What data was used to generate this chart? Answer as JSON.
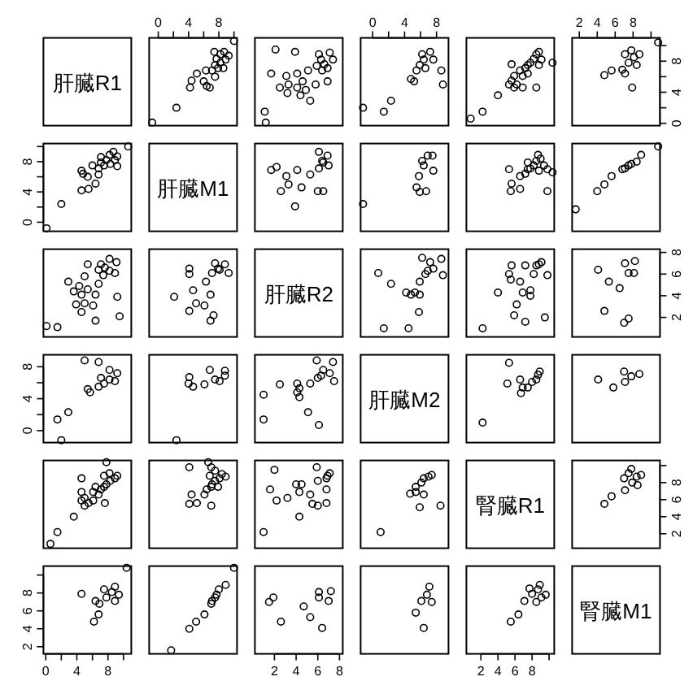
{
  "chart_data": [
    {
      "type": "other",
      "title": "肝臓R1"
    },
    {
      "type": "scatter",
      "color": "#000000",
      "marker": "circle",
      "xlim": [
        -1.2,
        10.4
      ],
      "ylim": [
        -0.3,
        11
      ],
      "tick_labels": "x",
      "xticks": [
        0,
        {
          "value": 2,
          "label": null
        },
        4,
        {
          "value": 6,
          "label": null
        },
        8,
        {
          "value": 10,
          "label": null
        }
      ],
      "x": [
        -0.8,
        2.4,
        4.2,
        4.4,
        5.1,
        6.0,
        6.4,
        6.8,
        6.3,
        7.5,
        7.7,
        7.4,
        8.2,
        8.7,
        9.3,
        8.2,
        7.9,
        8.6,
        7.1,
        7.5,
        8.9,
        10.0
      ],
      "values": [
        0.1,
        2.0,
        4.6,
        5.5,
        6.4,
        5.4,
        4.8,
        4.6,
        6.8,
        7.5,
        8.3,
        9.2,
        8.9,
        9.2,
        8.7,
        7.8,
        7.1,
        7.1,
        6.8,
        6.0,
        8.2,
        10.6
      ]
    },
    {
      "type": "scatter",
      "color": "#000000",
      "marker": "circle",
      "xlim": [
        0.2,
        8.3
      ],
      "ylim": [
        -0.3,
        11
      ],
      "tick_labels": false,
      "x": [
        1.1,
        1.2,
        2.1,
        1.7,
        2.5,
        3.1,
        3.9,
        3.3,
        3.2,
        4.1,
        4.4,
        4.6,
        5.1,
        5.3,
        5.8,
        6.1,
        6.4,
        6.9,
        7.1,
        7.4,
        6.9,
        6.6,
        6.3,
        4.9,
        4.1,
        5.9
      ],
      "values": [
        1.5,
        0.1,
        9.5,
        6.4,
        4.6,
        6.1,
        9.2,
        5.0,
        3.9,
        4.6,
        3.6,
        5.4,
        6.8,
        2.9,
        5.0,
        8.9,
        6.8,
        7.1,
        9.1,
        8.2,
        5.4,
        7.6,
        8.2,
        4.3,
        6.4,
        7.4
      ]
    },
    {
      "type": "scatter",
      "color": "#000000",
      "marker": "circle",
      "xlim": [
        -1.5,
        9.5
      ],
      "ylim": [
        -0.3,
        11
      ],
      "tick_labels": "x",
      "xticks": [
        0,
        {
          "value": 2,
          "label": null
        },
        4,
        {
          "value": 6,
          "label": null
        },
        8
      ],
      "x": [
        -1.2,
        1.4,
        2.3,
        4.8,
        5.2,
        5.5,
        5.9,
        6.4,
        6.2,
        7.2,
        7.6,
        6.6,
        8.6,
        8.8
      ],
      "values": [
        2.0,
        1.5,
        2.9,
        5.7,
        5.4,
        6.8,
        7.5,
        8.2,
        8.9,
        9.2,
        8.2,
        7.1,
        6.8,
        5.0
      ]
    },
    {
      "type": "scatter",
      "color": "#000000",
      "marker": "circle",
      "xlim": [
        0.3,
        10.6
      ],
      "ylim": [
        -0.3,
        11
      ],
      "tick_labels": false,
      "x": [
        0.8,
        2.2,
        4.0,
        5.3,
        5.6,
        5.9,
        6.2,
        6.6,
        6.9,
        7.2,
        7.5,
        7.8,
        8.2,
        8.5,
        8.8,
        9.1,
        10.4,
        5.6,
        6.9,
        8.5,
        5.9,
        7.5,
        8.8
      ],
      "values": [
        0.6,
        1.5,
        3.6,
        5.0,
        5.5,
        6.1,
        5.0,
        6.8,
        6.1,
        7.1,
        7.5,
        7.8,
        8.3,
        8.9,
        9.2,
        8.2,
        7.8,
        7.6,
        4.6,
        4.6,
        4.6,
        6.4,
        7.5
      ]
    },
    {
      "type": "scatter",
      "color": "#000000",
      "marker": "circle",
      "xlim": [
        1.2,
        11
      ],
      "ylim": [
        -0.3,
        11
      ],
      "xticks": [
        2,
        4,
        6,
        8,
        {
          "value": 10,
          "label": null
        }
      ],
      "yticks": [
        0,
        {
          "value": 2,
          "label": null
        },
        4,
        {
          "value": 6,
          "label": null
        },
        8,
        {
          "value": 10,
          "label": null
        }
      ],
      "x": [
        10.8,
        4.8,
        5.6,
        6.8,
        7.1,
        7.9,
        7.5,
        8.1,
        7.8,
        8.7,
        7.1,
        8.4
      ],
      "values": [
        10.4,
        6.2,
        6.8,
        6.9,
        6.4,
        4.6,
        7.8,
        8.5,
        9.4,
        8.9,
        8.9,
        7.5
      ]
    },
    {
      "type": "scatter",
      "color": "#000000",
      "marker": "circle",
      "xlim": [
        -0.3,
        11
      ],
      "ylim": [
        -1.2,
        10.4
      ],
      "tick_labels": "y",
      "yticks": [
        0,
        {
          "value": 2,
          "label": null
        },
        4,
        {
          "value": 6,
          "label": null
        },
        8,
        {
          "value": 10,
          "label": null
        }
      ],
      "x": [
        0.1,
        2.0,
        4.6,
        5.5,
        6.4,
        5.4,
        4.8,
        4.6,
        6.8,
        7.5,
        8.3,
        9.2,
        8.9,
        9.2,
        8.7,
        7.8,
        7.1,
        7.1,
        6.8,
        6.0,
        8.2,
        10.6
      ],
      "values": [
        -0.8,
        2.4,
        4.2,
        4.4,
        5.1,
        6.0,
        6.4,
        6.8,
        6.3,
        7.5,
        7.7,
        7.4,
        8.2,
        8.7,
        9.3,
        8.2,
        7.9,
        8.6,
        7.1,
        7.5,
        8.9,
        10.0
      ]
    },
    {
      "type": "other",
      "title": "肝臓M1"
    },
    {
      "type": "scatter",
      "color": "#000000",
      "marker": "circle",
      "xlim": [
        0.2,
        8.3
      ],
      "ylim": [
        -1.2,
        10.4
      ],
      "tick_labels": false,
      "x": [
        1.7,
        2.2,
        2.6,
        3.1,
        3.3,
        4.1,
        3.9,
        4.5,
        5.3,
        6.0,
        6.5,
        6.1,
        6.4,
        6.9,
        7.0,
        6.1,
        6.5
      ],
      "values": [
        6.9,
        7.3,
        4.1,
        6.1,
        5.0,
        6.9,
        2.1,
        4.6,
        6.3,
        4.1,
        4.1,
        9.3,
        8.1,
        8.8,
        7.5,
        7.1,
        7.9
      ]
    },
    {
      "type": "scatter",
      "color": "#000000",
      "marker": "circle",
      "xlim": [
        -1.5,
        9.5
      ],
      "ylim": [
        -1.2,
        10.4
      ],
      "tick_labels": false,
      "x": [
        -1.2,
        5.5,
        5.9,
        6.7,
        5.8,
        6.4,
        6.2,
        6.9,
        7.5,
        7.6
      ],
      "values": [
        2.4,
        4.6,
        4.0,
        4.1,
        6.1,
        7.5,
        8.1,
        8.8,
        8.8,
        6.8
      ]
    },
    {
      "type": "scatter",
      "color": "#000000",
      "marker": "circle",
      "xlim": [
        0.3,
        10.6
      ],
      "ylim": [
        -1.2,
        10.4
      ],
      "tick_labels": false,
      "x": [
        5.3,
        5.6,
        5.5,
        6.6,
        6.6,
        7.2,
        7.5,
        7.8,
        8.2,
        8.5,
        8.7,
        9.0,
        9.4,
        9.8,
        9.8,
        10.4,
        8.8,
        7.5
      ],
      "values": [
        7.0,
        5.1,
        4.1,
        4.4,
        6.1,
        6.4,
        7.0,
        7.1,
        7.5,
        8.1,
        8.9,
        8.4,
        7.5,
        7.0,
        4.1,
        6.6,
        6.8,
        7.9
      ]
    },
    {
      "type": "scatter",
      "color": "#000000",
      "marker": "circle",
      "xlim": [
        1.2,
        11
      ],
      "ylim": [
        -1.2,
        10.4
      ],
      "tick_labels": false,
      "x": [
        1.6,
        4.0,
        4.8,
        5.6,
        6.8,
        7.5,
        7.8,
        8.4,
        8.9,
        10.8,
        7.1
      ],
      "values": [
        1.7,
        4.1,
        5.0,
        6.1,
        7.0,
        7.5,
        7.7,
        8.0,
        8.9,
        10.0,
        7.1
      ]
    },
    {
      "type": "scatter",
      "color": "#000000",
      "marker": "circle",
      "xlim": [
        -0.3,
        11
      ],
      "ylim": [
        0.2,
        8.3
      ],
      "tick_labels": false,
      "x": [
        1.5,
        0.1,
        9.5,
        6.4,
        4.6,
        6.1,
        9.2,
        5.0,
        3.9,
        4.6,
        3.6,
        5.4,
        6.8,
        2.9,
        5.0,
        8.9,
        6.8,
        7.1,
        9.1,
        8.2,
        5.4,
        7.6,
        8.2,
        4.3,
        6.4,
        7.4
      ],
      "values": [
        1.1,
        1.2,
        2.1,
        1.7,
        2.5,
        3.1,
        3.9,
        3.3,
        3.2,
        4.1,
        4.4,
        4.6,
        5.1,
        5.3,
        5.8,
        6.1,
        6.4,
        6.9,
        7.1,
        7.4,
        6.9,
        6.6,
        6.3,
        4.9,
        4.1,
        5.9
      ]
    },
    {
      "type": "scatter",
      "color": "#000000",
      "marker": "circle",
      "xlim": [
        -1.2,
        10.4
      ],
      "ylim": [
        0.2,
        8.3
      ],
      "tick_labels": false,
      "x": [
        6.9,
        7.3,
        4.1,
        6.1,
        5.0,
        6.9,
        2.1,
        4.6,
        6.3,
        4.1,
        4.1,
        9.3,
        8.1,
        8.8,
        7.5,
        7.1,
        7.9
      ],
      "values": [
        1.7,
        2.2,
        2.6,
        3.1,
        3.3,
        4.1,
        3.9,
        4.5,
        5.3,
        6.0,
        6.5,
        6.1,
        6.4,
        6.9,
        7.0,
        6.1,
        6.5
      ]
    },
    {
      "type": "other",
      "title": "肝臓R2"
    },
    {
      "type": "scatter",
      "color": "#000000",
      "marker": "circle",
      "xlim": [
        -1.5,
        9.5
      ],
      "ylim": [
        0.2,
        8.3
      ],
      "tick_labels": false,
      "x": [
        1.4,
        4.5,
        0.7,
        2.3,
        4.2,
        4.8,
        5.3,
        5.9,
        5.8,
        6.2,
        6.6,
        7.2,
        7.6,
        8.6,
        8.8,
        6.9,
        5.9
      ],
      "values": [
        1.0,
        1.0,
        6.1,
        5.1,
        4.3,
        4.1,
        4.3,
        5.3,
        2.5,
        7.5,
        6.0,
        7.1,
        6.5,
        7.4,
        5.9,
        6.3,
        4.1
      ]
    },
    {
      "type": "scatter",
      "color": "#000000",
      "marker": "circle",
      "xlim": [
        0.3,
        10.6
      ],
      "ylim": [
        0.2,
        8.3
      ],
      "tick_labels": false,
      "x": [
        2.2,
        4.0,
        5.3,
        5.6,
        5.5,
        6.6,
        6.9,
        6.2,
        5.9,
        7.2,
        7.8,
        8.2,
        8.5,
        8.8,
        9.1,
        9.8,
        7.2,
        9.5,
        7.8
      ],
      "values": [
        1.0,
        4.3,
        6.0,
        6.8,
        5.5,
        5.3,
        4.3,
        3.2,
        2.2,
        6.8,
        4.5,
        6.0,
        6.8,
        6.9,
        7.1,
        5.9,
        1.6,
        2.0,
        4.0
      ]
    },
    {
      "type": "scatter",
      "color": "#000000",
      "marker": "circle",
      "xlim": [
        1.2,
        11
      ],
      "ylim": [
        0.2,
        8.3
      ],
      "tick_labels": "y",
      "yticks": [
        2,
        4,
        6,
        8
      ],
      "x": [
        4.1,
        4.8,
        5.3,
        6.5,
        7.1,
        7.5,
        8.1,
        8.2,
        7.0,
        7.5
      ],
      "values": [
        6.4,
        2.6,
        5.3,
        4.7,
        7.0,
        6.1,
        6.1,
        7.2,
        1.5,
        1.9
      ]
    },
    {
      "type": "scatter",
      "color": "#000000",
      "marker": "circle",
      "xlim": [
        -0.3,
        11
      ],
      "ylim": [
        -1.5,
        9.5
      ],
      "tick_labels": "y",
      "yticks": [
        0,
        {
          "value": 2,
          "label": null
        },
        4,
        {
          "value": 6,
          "label": null
        },
        8
      ],
      "x": [
        2.0,
        1.5,
        2.9,
        5.7,
        5.4,
        6.8,
        7.5,
        8.2,
        8.9,
        9.2,
        8.2,
        7.1,
        6.8,
        5.0
      ],
      "values": [
        -1.2,
        1.4,
        2.3,
        4.8,
        5.2,
        5.5,
        5.9,
        6.4,
        6.2,
        7.2,
        7.6,
        6.6,
        8.6,
        8.8
      ]
    },
    {
      "type": "scatter",
      "color": "#000000",
      "marker": "circle",
      "xlim": [
        -1.2,
        10.4
      ],
      "ylim": [
        -1.5,
        9.5
      ],
      "tick_labels": false,
      "x": [
        2.4,
        4.6,
        4.0,
        4.1,
        6.1,
        7.5,
        8.1,
        8.8,
        8.8,
        6.8
      ],
      "values": [
        -1.2,
        5.5,
        5.9,
        6.7,
        5.8,
        6.4,
        6.2,
        6.9,
        7.5,
        7.6
      ]
    },
    {
      "type": "scatter",
      "color": "#000000",
      "marker": "circle",
      "xlim": [
        0.2,
        8.3
      ],
      "ylim": [
        -1.5,
        9.5
      ],
      "tick_labels": false,
      "x": [
        1.0,
        1.0,
        6.1,
        5.1,
        4.3,
        4.1,
        4.3,
        5.3,
        2.5,
        7.5,
        6.0,
        7.1,
        6.5,
        7.4,
        5.9,
        6.3,
        4.1
      ],
      "values": [
        1.4,
        4.5,
        0.7,
        2.3,
        4.2,
        4.8,
        5.3,
        5.9,
        5.8,
        6.2,
        6.6,
        7.2,
        7.6,
        8.6,
        8.8,
        6.9,
        5.9
      ]
    },
    {
      "type": "other",
      "title": "肝臓M2"
    },
    {
      "type": "scatter",
      "color": "#000000",
      "marker": "circle",
      "xlim": [
        0.3,
        10.6
      ],
      "ylim": [
        -1.5,
        9.5
      ],
      "tick_labels": false,
      "x": [
        2.2,
        5.3,
        5.1,
        6.6,
        6.7,
        7.5,
        8.0,
        8.5,
        8.7,
        8.9,
        6.9
      ],
      "values": [
        1.0,
        8.5,
        5.9,
        6.4,
        4.7,
        5.4,
        6.1,
        6.4,
        7.0,
        7.4,
        5.4
      ]
    },
    {
      "type": "scatter",
      "color": "#000000",
      "marker": "circle",
      "xlim": [
        1.2,
        11
      ],
      "ylim": [
        -1.5,
        9.5
      ],
      "tick_labels": false,
      "x": [
        4.1,
        5.8,
        7.0,
        7.1,
        7.8,
        8.7
      ],
      "values": [
        6.4,
        5.4,
        7.4,
        6.1,
        6.8,
        7.1
      ]
    },
    {
      "type": "scatter",
      "color": "#000000",
      "marker": "circle",
      "xlim": [
        -0.3,
        11
      ],
      "ylim": [
        0.3,
        10.6
      ],
      "tick_labels": false,
      "x": [
        0.6,
        1.5,
        3.6,
        5.0,
        5.5,
        6.1,
        5.0,
        6.8,
        6.1,
        7.1,
        7.5,
        7.8,
        8.3,
        8.9,
        9.2,
        8.2,
        7.8,
        7.6,
        4.6,
        4.6,
        4.6,
        6.4,
        7.5
      ],
      "values": [
        0.8,
        2.2,
        4.0,
        5.3,
        5.6,
        5.9,
        6.2,
        6.6,
        6.9,
        7.2,
        7.5,
        7.8,
        8.2,
        8.5,
        8.8,
        9.1,
        10.4,
        5.6,
        6.9,
        8.5,
        5.9,
        7.5,
        8.8
      ]
    },
    {
      "type": "scatter",
      "color": "#000000",
      "marker": "circle",
      "xlim": [
        -1.2,
        10.4
      ],
      "ylim": [
        0.3,
        10.6
      ],
      "tick_labels": false,
      "x": [
        7.0,
        5.1,
        4.1,
        4.4,
        6.1,
        6.4,
        7.0,
        7.1,
        7.5,
        8.1,
        8.9,
        8.4,
        7.5,
        7.0,
        4.1,
        6.6,
        6.8,
        7.9
      ],
      "values": [
        5.3,
        5.6,
        5.5,
        6.6,
        6.6,
        7.2,
        7.5,
        7.8,
        8.2,
        8.5,
        8.7,
        9.0,
        9.4,
        9.8,
        9.8,
        10.4,
        8.8,
        7.5
      ]
    },
    {
      "type": "scatter",
      "color": "#000000",
      "marker": "circle",
      "xlim": [
        0.2,
        8.3
      ],
      "ylim": [
        0.3,
        10.6
      ],
      "tick_labels": false,
      "x": [
        1.0,
        4.3,
        6.0,
        6.8,
        5.5,
        5.3,
        4.3,
        3.2,
        2.2,
        6.8,
        4.5,
        6.0,
        6.8,
        6.9,
        7.1,
        5.9,
        1.6,
        2.0,
        4.0
      ],
      "values": [
        2.2,
        4.0,
        5.3,
        5.6,
        5.5,
        6.6,
        6.9,
        6.2,
        5.9,
        7.2,
        7.8,
        8.2,
        8.5,
        8.8,
        9.1,
        9.8,
        7.2,
        9.5,
        7.8
      ]
    },
    {
      "type": "scatter",
      "color": "#000000",
      "marker": "circle",
      "xlim": [
        -1.5,
        9.5
      ],
      "ylim": [
        0.3,
        10.6
      ],
      "tick_labels": false,
      "x": [
        1.0,
        8.5,
        5.9,
        6.4,
        4.7,
        5.4,
        6.1,
        6.4,
        7.0,
        7.4,
        5.4
      ],
      "values": [
        2.2,
        5.3,
        5.1,
        6.6,
        6.7,
        7.5,
        8.0,
        8.5,
        8.7,
        8.9,
        6.9
      ]
    },
    {
      "type": "other",
      "title": "腎臓R1"
    },
    {
      "type": "scatter",
      "color": "#000000",
      "marker": "circle",
      "xlim": [
        1.2,
        11
      ],
      "ylim": [
        0.3,
        10.6
      ],
      "tick_labels": "y",
      "yticks": [
        2,
        4,
        6,
        8,
        {
          "value": 10,
          "label": null
        }
      ],
      "x": [
        4.8,
        5.6,
        7.1,
        7.0,
        7.8,
        8.4,
        7.9,
        8.5,
        7.5,
        8.9
      ],
      "values": [
        5.5,
        6.4,
        7.1,
        8.5,
        9.6,
        8.7,
        8.0,
        7.7,
        9.1,
        8.9
      ]
    },
    {
      "type": "scatter",
      "color": "#000000",
      "marker": "circle",
      "xlim": [
        -0.3,
        11
      ],
      "ylim": [
        1.2,
        11
      ],
      "xticks": [
        0,
        {
          "value": 2,
          "label": null
        },
        4,
        {
          "value": 6,
          "label": null
        },
        8,
        {
          "value": 10,
          "label": null
        }
      ],
      "yticks": [
        2,
        4,
        6,
        8,
        {
          "value": 10,
          "label": null
        }
      ],
      "x": [
        10.4,
        6.2,
        6.8,
        6.9,
        6.4,
        4.6,
        7.8,
        8.5,
        9.4,
        8.9,
        8.9,
        7.5
      ],
      "values": [
        10.8,
        4.8,
        5.6,
        6.8,
        7.1,
        7.9,
        7.5,
        8.1,
        7.8,
        8.7,
        7.1,
        8.4
      ]
    },
    {
      "type": "scatter",
      "color": "#000000",
      "marker": "circle",
      "xlim": [
        -1.2,
        10.4
      ],
      "ylim": [
        1.2,
        11
      ],
      "tick_labels": false,
      "x": [
        1.7,
        4.1,
        5.0,
        6.1,
        7.0,
        7.5,
        7.7,
        8.0,
        8.9,
        10.0,
        7.1
      ],
      "values": [
        1.6,
        4.0,
        4.8,
        5.6,
        6.8,
        7.5,
        7.8,
        8.4,
        8.9,
        10.8,
        7.1
      ]
    },
    {
      "type": "scatter",
      "color": "#000000",
      "marker": "circle",
      "xlim": [
        0.2,
        8.3
      ],
      "ylim": [
        1.2,
        11
      ],
      "tick_labels": "x",
      "xticks": [
        2,
        4,
        6,
        8
      ],
      "x": [
        6.4,
        2.6,
        5.3,
        4.7,
        7.0,
        6.1,
        6.1,
        7.2,
        1.5,
        1.9
      ],
      "values": [
        4.1,
        4.8,
        5.3,
        6.5,
        7.1,
        7.5,
        8.1,
        8.2,
        7.0,
        7.5
      ]
    },
    {
      "type": "scatter",
      "color": "#000000",
      "marker": "circle",
      "xlim": [
        -1.5,
        9.5
      ],
      "ylim": [
        1.2,
        11
      ],
      "tick_labels": false,
      "x": [
        6.4,
        5.4,
        7.4,
        6.1,
        6.8,
        7.1
      ],
      "values": [
        4.1,
        5.8,
        7.0,
        7.1,
        7.8,
        8.7
      ]
    },
    {
      "type": "scatter",
      "color": "#000000",
      "marker": "circle",
      "xlim": [
        0.3,
        10.6
      ],
      "ylim": [
        1.2,
        11
      ],
      "tick_labels": "x",
      "xticks": [
        2,
        4,
        6,
        8,
        {
          "value": 10,
          "label": null
        }
      ],
      "x": [
        5.5,
        6.4,
        7.1,
        8.5,
        9.6,
        8.7,
        8.0,
        7.7,
        9.1,
        8.9
      ],
      "values": [
        4.8,
        5.6,
        7.1,
        7.0,
        7.8,
        8.4,
        7.9,
        8.5,
        7.5,
        8.9
      ]
    },
    {
      "type": "other",
      "title": "腎臓M1"
    }
  ]
}
